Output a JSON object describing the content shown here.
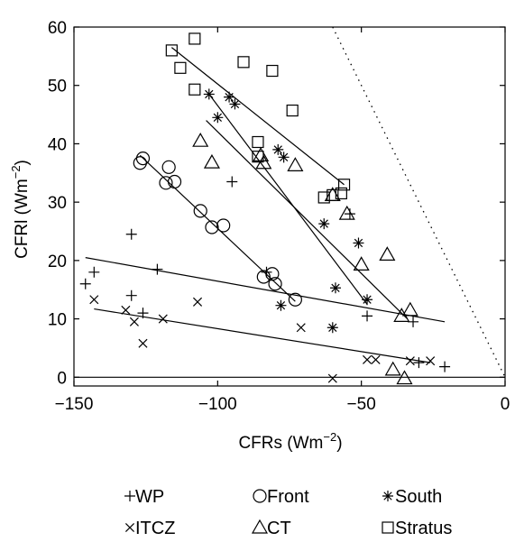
{
  "chart_data": {
    "type": "scatter",
    "xlabel": "CFRs  (Wm",
    "xlabel_sup": "−2",
    "xlabel_end": ")",
    "ylabel": "CFRl (Wm",
    "ylabel_sup": "−2",
    "ylabel_end": ")",
    "xlim": [
      -150,
      0
    ],
    "ylim": [
      -1.5,
      60
    ],
    "xticks": [
      -150,
      -100,
      -50,
      0
    ],
    "xtick_labels": [
      "−150",
      "−100",
      "−50",
      "0"
    ],
    "yticks": [
      0,
      10,
      20,
      30,
      40,
      50,
      60
    ],
    "ytick_labels": [
      "0",
      "10",
      "20",
      "30",
      "40",
      "50",
      "60"
    ],
    "grid": false,
    "legend_position": "bottom",
    "series": [
      {
        "name": "WP",
        "marker": "plus",
        "points": [
          [
            -146,
            16
          ],
          [
            -143,
            18
          ],
          [
            -130,
            24.5
          ],
          [
            -130,
            14
          ],
          [
            -126,
            11
          ],
          [
            -121,
            18.5
          ],
          [
            -95,
            33.5
          ],
          [
            -83,
            18
          ],
          [
            -54,
            28
          ],
          [
            -48,
            10.5
          ],
          [
            -32,
            9.5
          ],
          [
            -30,
            2.5
          ],
          [
            -21,
            1.8
          ]
        ],
        "fit": [
          [
            -146,
            20.5
          ],
          [
            -21,
            9.5
          ]
        ]
      },
      {
        "name": "Front",
        "marker": "circle",
        "points": [
          [
            -127,
            36.7
          ],
          [
            -126,
            37.5
          ],
          [
            -118,
            33.3
          ],
          [
            -117,
            36
          ],
          [
            -115,
            33.5
          ],
          [
            -106,
            28.5
          ],
          [
            -102,
            25.7
          ],
          [
            -98,
            26
          ],
          [
            -84,
            17.2
          ],
          [
            -81,
            17.7
          ],
          [
            -80,
            16
          ],
          [
            -73,
            13.3
          ]
        ],
        "fit": [
          [
            -127,
            38
          ],
          [
            -73,
            13
          ]
        ]
      },
      {
        "name": "South",
        "marker": "asterisk",
        "points": [
          [
            -103,
            48.5
          ],
          [
            -100,
            44.5
          ],
          [
            -96,
            48
          ],
          [
            -94,
            46.8
          ],
          [
            -79,
            39
          ],
          [
            -77,
            37.7
          ],
          [
            -78,
            12.3
          ],
          [
            -63,
            26.3
          ],
          [
            -59,
            15.3
          ],
          [
            -60,
            8.5
          ],
          [
            -51,
            23
          ],
          [
            -48,
            13.3
          ]
        ],
        "fit": [
          [
            -103,
            48.5
          ],
          [
            -48,
            12.5
          ]
        ]
      },
      {
        "name": "ITCZ",
        "marker": "x",
        "points": [
          [
            -143,
            13.3
          ],
          [
            -132,
            11.5
          ],
          [
            -129,
            9.5
          ],
          [
            -126,
            5.8
          ],
          [
            -119,
            10
          ],
          [
            -107,
            12.9
          ],
          [
            -71,
            8.5
          ],
          [
            -60,
            -0.2
          ],
          [
            -48,
            3
          ],
          [
            -45,
            3
          ],
          [
            -33,
            2.8
          ],
          [
            -26,
            2.8
          ]
        ],
        "fit": [
          [
            -143,
            11.7
          ],
          [
            -26,
            2.5
          ]
        ]
      },
      {
        "name": "CT",
        "marker": "triangle",
        "points": [
          [
            -106,
            40.5
          ],
          [
            -102,
            36.8
          ],
          [
            -85,
            38
          ],
          [
            -84,
            36.7
          ],
          [
            -73,
            36.3
          ],
          [
            -60,
            31.2
          ],
          [
            -55,
            28
          ],
          [
            -50,
            19.3
          ],
          [
            -41,
            21
          ],
          [
            -39,
            1.3
          ],
          [
            -35,
            -0.2
          ],
          [
            -36,
            10.5
          ],
          [
            -33,
            11.5
          ]
        ],
        "fit": [
          [
            -104,
            44
          ],
          [
            -34,
            10
          ]
        ]
      },
      {
        "name": "Stratus",
        "marker": "square",
        "points": [
          [
            -116,
            56
          ],
          [
            -113,
            53
          ],
          [
            -108,
            58
          ],
          [
            -108,
            49.3
          ],
          [
            -91,
            54
          ],
          [
            -81,
            52.5
          ],
          [
            -86,
            40.3
          ],
          [
            -86,
            37.8
          ],
          [
            -74,
            45.7
          ],
          [
            -63,
            30.8
          ],
          [
            -60,
            31.2
          ],
          [
            -57,
            31.5
          ],
          [
            -56,
            33
          ]
        ],
        "fit": [
          [
            -116,
            56.5
          ],
          [
            -56,
            33
          ]
        ]
      }
    ],
    "reference_lines": [
      {
        "style": "solid",
        "points": [
          [
            -150,
            0
          ],
          [
            0,
            0
          ]
        ]
      },
      {
        "style": "dotted",
        "points": [
          [
            -60,
            60
          ],
          [
            0,
            0
          ]
        ]
      }
    ]
  }
}
